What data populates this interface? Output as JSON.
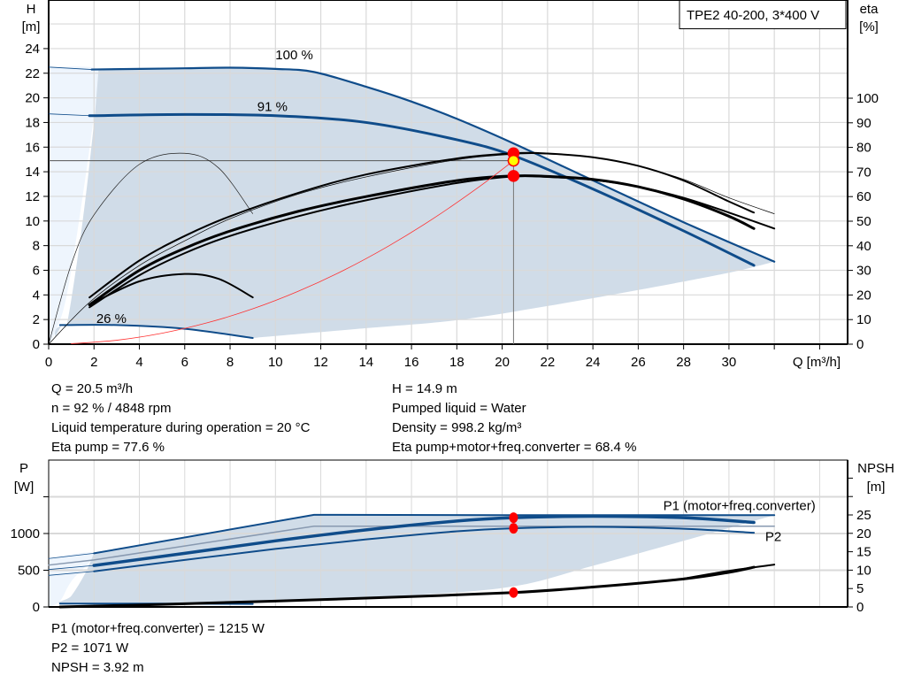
{
  "chart_data": [
    {
      "type": "line",
      "title": "TPE2 40-200, 3*400 V",
      "xlabel": "Q [m³/h]",
      "ylabel_left": [
        "H",
        "[m]"
      ],
      "ylabel_right": [
        "eta",
        "[%]"
      ],
      "xlim": [
        0,
        35
      ],
      "ylim_left": [
        0,
        28
      ],
      "ylim_right": [
        0,
        100.7
      ],
      "x_ticks": [
        "0",
        "2",
        "4",
        "6",
        "8",
        "10",
        "12",
        "14",
        "16",
        "18",
        "20",
        "22",
        "24",
        "26",
        "28",
        "30"
      ],
      "y_ticks_left": [
        "0",
        "2",
        "4",
        "6",
        "8",
        "10",
        "12",
        "14",
        "16",
        "18",
        "20",
        "22",
        "24"
      ],
      "y_ticks_right": [
        "0",
        "10",
        "20",
        "30",
        "40",
        "50",
        "60",
        "70",
        "80",
        "90",
        "100"
      ],
      "grid": true,
      "labels": [
        {
          "text": "100 %",
          "q": 10,
          "h": 23.5
        },
        {
          "text": "91 %",
          "q": 9.2,
          "h": 19.3
        },
        {
          "text": "26 %",
          "q": 2.1,
          "h": 2.1
        }
      ],
      "series": [
        {
          "id": "h-100",
          "axis": "H",
          "color": "#0f4c8a",
          "width": 2.2,
          "points": [
            [
              1.9,
              22.3
            ],
            [
              4,
              22.35
            ],
            [
              6,
              22.4
            ],
            [
              8,
              22.45
            ],
            [
              10,
              22.35
            ],
            [
              11.7,
              22.1
            ],
            [
              14,
              20.9
            ],
            [
              16,
              19.7
            ],
            [
              18,
              18.3
            ],
            [
              20.5,
              16.3
            ],
            [
              24,
              13.3
            ],
            [
              28,
              9.9
            ],
            [
              32,
              6.7
            ]
          ]
        },
        {
          "id": "h-100-ext",
          "axis": "H",
          "color": "#0f4c8a",
          "width": 0.8,
          "points": [
            [
              0,
              22.5
            ],
            [
              1.9,
              22.3
            ]
          ]
        },
        {
          "id": "h-91",
          "axis": "H",
          "color": "#0f4c8a",
          "width": 3,
          "points": [
            [
              1.8,
              18.55
            ],
            [
              6,
              18.65
            ],
            [
              10,
              18.55
            ],
            [
              14,
              18.0
            ],
            [
              18,
              16.6
            ],
            [
              20.5,
              15.3
            ],
            [
              24,
              12.6
            ],
            [
              28,
              9.2
            ],
            [
              31.1,
              6.4
            ]
          ]
        },
        {
          "id": "h-91-ext",
          "axis": "H",
          "color": "#0f4c8a",
          "width": 0.8,
          "points": [
            [
              0,
              18.7
            ],
            [
              1.8,
              18.55
            ]
          ]
        },
        {
          "id": "h-26",
          "axis": "H",
          "color": "#0f4c8a",
          "width": 2,
          "points": [
            [
              0.5,
              1.55
            ],
            [
              3,
              1.55
            ],
            [
              6,
              1.25
            ],
            [
              9,
              0.5
            ]
          ]
        },
        {
          "id": "eta-small-thin",
          "axis": "H",
          "color": "#222",
          "width": 0.7,
          "points": [
            [
              0,
              0
            ],
            [
              1,
              6.5
            ],
            [
              2,
              10.5
            ],
            [
              4,
              14.6
            ],
            [
              6,
              15.5
            ],
            [
              7.5,
              14.3
            ],
            [
              9,
              10.6
            ]
          ]
        },
        {
          "id": "eta-small-thick",
          "axis": "H",
          "color": "#000",
          "width": 2,
          "points": [
            [
              1.8,
              3.2
            ],
            [
              4,
              5.1
            ],
            [
              6,
              5.7
            ],
            [
              7.5,
              5.3
            ],
            [
              9,
              3.8
            ]
          ]
        },
        {
          "id": "eta-pump-thin",
          "axis": "eta",
          "color": "#000",
          "width": 0.7,
          "points": [
            [
              0,
              0
            ],
            [
              1.8,
              17
            ],
            [
              4,
              32
            ],
            [
              6,
              42
            ],
            [
              8,
              51
            ],
            [
              11,
              61
            ],
            [
              14,
              68
            ],
            [
              18,
              75
            ],
            [
              20.5,
              77.2
            ],
            [
              22,
              77.3
            ],
            [
              24,
              76
            ],
            [
              26,
              72.5
            ],
            [
              28,
              67
            ],
            [
              30,
              59.5
            ],
            [
              32,
              53
            ]
          ]
        },
        {
          "id": "eta-pump",
          "axis": "eta",
          "color": "#000",
          "width": 2,
          "points": [
            [
              1.8,
              19
            ],
            [
              4,
              34
            ],
            [
              6,
              44
            ],
            [
              8,
              52
            ],
            [
              11,
              61.5
            ],
            [
              14,
              69
            ],
            [
              18,
              75.5
            ],
            [
              20.5,
              77.6
            ],
            [
              22,
              77.5
            ],
            [
              24,
              76
            ],
            [
              26,
              72.5
            ],
            [
              28,
              66.5
            ],
            [
              30,
              58
            ],
            [
              31.1,
              53.5
            ]
          ]
        },
        {
          "id": "eta-total-a",
          "axis": "eta",
          "color": "#000",
          "width": 3,
          "points": [
            [
              1.8,
              16
            ],
            [
              4,
              30
            ],
            [
              6,
              39
            ],
            [
              8,
              46
            ],
            [
              11,
              54
            ],
            [
              14,
              60
            ],
            [
              18,
              66.5
            ],
            [
              20.5,
              68.4
            ],
            [
              22,
              68.2
            ],
            [
              24,
              67
            ],
            [
              26,
              64
            ],
            [
              28,
              59
            ],
            [
              30,
              52
            ],
            [
              31.1,
              47
            ]
          ]
        },
        {
          "id": "eta-total-b",
          "axis": "eta",
          "color": "#000",
          "width": 2,
          "points": [
            [
              1.8,
              15
            ],
            [
              4,
              28
            ],
            [
              6,
              37
            ],
            [
              8,
              44
            ],
            [
              11,
              52
            ],
            [
              14,
              58.5
            ],
            [
              18,
              65.5
            ],
            [
              20.5,
              68.2
            ],
            [
              22,
              68
            ],
            [
              24,
              66.8
            ],
            [
              26,
              64
            ],
            [
              28,
              59.5
            ],
            [
              30,
              53.5
            ],
            [
              32,
              47
            ]
          ]
        },
        {
          "id": "system-curve",
          "axis": "H",
          "color": "#ff3030",
          "width": 0.8,
          "points": [
            [
              1,
              0.04
            ],
            [
              3,
              0.32
            ],
            [
              5,
              0.89
            ],
            [
              7,
              1.74
            ],
            [
              9,
              2.87
            ],
            [
              11,
              4.29
            ],
            [
              13,
              5.99
            ],
            [
              15,
              7.98
            ],
            [
              17,
              10.25
            ],
            [
              19,
              12.8
            ],
            [
              20.5,
              14.9
            ]
          ]
        }
      ],
      "operating_line_h": 14.9,
      "operating_q": 20.5,
      "markers": [
        {
          "axis": "eta",
          "q": 20.5,
          "value": 77.6,
          "color": "#ff0000"
        },
        {
          "axis": "H",
          "q": 20.5,
          "value": 14.9,
          "color": "#ffff00"
        },
        {
          "axis": "eta",
          "q": 20.5,
          "value": 68.4,
          "color": "#ff0000"
        }
      ],
      "colors": {
        "curve": "#0f4c8a",
        "area": "#d0dce8",
        "area_light": "#eef5fd",
        "grid": "#d9d9d9"
      }
    },
    {
      "type": "line",
      "xlim": [
        0,
        35
      ],
      "ylabel_left": [
        "P",
        "[W]"
      ],
      "ylabel_right": [
        "NPSH",
        "[m]"
      ],
      "ylim_left": [
        0,
        2000
      ],
      "ylim_right": [
        0,
        40
      ],
      "y_ticks_left": [
        "0",
        "500",
        "1000"
      ],
      "y_ticks_right": [
        "0",
        "5",
        "10",
        "15",
        "20",
        "25"
      ],
      "grid": true,
      "labels": [
        {
          "text": "P1 (motor+freq.converter)",
          "q": 27.1,
          "p": 1380,
          "color": "#0f4c8a"
        },
        {
          "text": "P2",
          "q": 31.6,
          "p": 960,
          "color": "#0f4c8a"
        }
      ],
      "series": [
        {
          "id": "p-max",
          "axis": "P",
          "color": "#0f4c8a",
          "width": 2,
          "points": [
            [
              2,
              730
            ],
            [
              11.7,
              1255
            ],
            [
              20,
              1250
            ],
            [
              32,
              1250
            ]
          ]
        },
        {
          "id": "p-max-ext",
          "axis": "P",
          "color": "#0f4c8a",
          "width": 0.8,
          "points": [
            [
              0,
              660
            ],
            [
              2,
              730
            ]
          ]
        },
        {
          "id": "p-mid-thin",
          "axis": "P",
          "color": "#8899b0",
          "width": 1.5,
          "points": [
            [
              0,
              570
            ],
            [
              2,
              640
            ],
            [
              11.7,
              1100
            ],
            [
              20,
              1100
            ],
            [
              32,
              1100
            ]
          ]
        },
        {
          "id": "p1",
          "axis": "P",
          "color": "#0f4c8a",
          "width": 3.5,
          "points": [
            [
              2,
              565
            ],
            [
              6,
              730
            ],
            [
              10,
              900
            ],
            [
              14,
              1050
            ],
            [
              18,
              1170
            ],
            [
              20.5,
              1215
            ],
            [
              24,
              1235
            ],
            [
              28,
              1215
            ],
            [
              31.1,
              1150
            ]
          ]
        },
        {
          "id": "p1-ext",
          "axis": "P",
          "color": "#0f4c8a",
          "width": 0.8,
          "points": [
            [
              0,
              510
            ],
            [
              2,
              565
            ]
          ]
        },
        {
          "id": "p2",
          "axis": "P",
          "color": "#0f4c8a",
          "width": 2,
          "points": [
            [
              2,
              485
            ],
            [
              6,
              640
            ],
            [
              10,
              790
            ],
            [
              14,
              920
            ],
            [
              18,
              1030
            ],
            [
              20.5,
              1071
            ],
            [
              24,
              1090
            ],
            [
              28,
              1065
            ],
            [
              31.1,
              1010
            ]
          ]
        },
        {
          "id": "p2-ext",
          "axis": "P",
          "color": "#0f4c8a",
          "width": 0.8,
          "points": [
            [
              0,
              430
            ],
            [
              2,
              485
            ]
          ]
        },
        {
          "id": "p-min",
          "axis": "P",
          "color": "#0f4c8a",
          "width": 2,
          "points": [
            [
              0.5,
              45
            ],
            [
              5,
              45
            ],
            [
              9,
              40
            ]
          ]
        },
        {
          "id": "npsh",
          "axis": "NPSH",
          "color": "#000",
          "width": 3,
          "points": [
            [
              0.5,
              0
            ],
            [
              5,
              0.7
            ],
            [
              10,
              1.6
            ],
            [
              15,
              2.6
            ],
            [
              20.5,
              3.92
            ],
            [
              24,
              5.4
            ],
            [
              28,
              7.6
            ],
            [
              30,
              9.4
            ],
            [
              31.1,
              10.8
            ]
          ]
        },
        {
          "id": "npsh-b",
          "axis": "NPSH",
          "color": "#000",
          "width": 2,
          "points": [
            [
              28,
              7.7
            ],
            [
              30,
              9.8
            ],
            [
              32,
              11.5
            ]
          ]
        }
      ],
      "operating_q": 20.5,
      "markers": [
        {
          "axis": "P",
          "q": 20.5,
          "value": 1215,
          "color": "#ff0000"
        },
        {
          "axis": "P",
          "q": 20.5,
          "value": 1071,
          "color": "#ff0000"
        },
        {
          "axis": "NPSH",
          "q": 20.5,
          "value": 3.92,
          "color": "#ff0000"
        }
      ]
    }
  ],
  "info_top_left": [
    "Q = 20.5 m³/h",
    "n = 92 % / 4848 rpm",
    "Liquid temperature during operation = 20 °C",
    "Eta pump = 77.6 %"
  ],
  "info_top_right": [
    "H = 14.9 m",
    "Pumped liquid = Water",
    "Density = 998.2 kg/m³",
    "Eta pump+motor+freq.converter = 68.4 %"
  ],
  "info_bottom": [
    "P1 (motor+freq.converter) = 1215 W",
    "P2 = 1071 W",
    "NPSH = 3.92 m"
  ]
}
